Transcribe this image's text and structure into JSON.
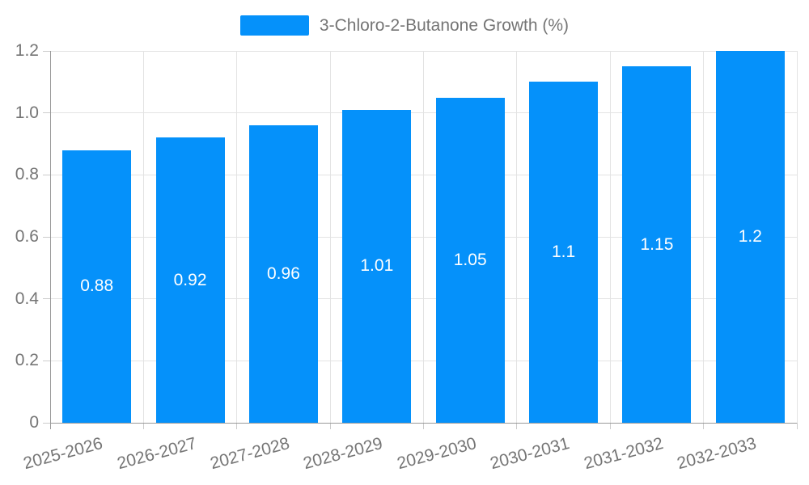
{
  "chart_data": {
    "type": "bar",
    "title": "",
    "legend": {
      "label": "3-Chloro-2-Butanone Growth (%)",
      "position": "top"
    },
    "categories": [
      "2025-2026",
      "2026-2027",
      "2027-2028",
      "2028-2029",
      "2029-2030",
      "2030-2031",
      "2031-2032",
      "2032-2033"
    ],
    "series": [
      {
        "name": "3-Chloro-2-Butanone Growth (%)",
        "values": [
          0.88,
          0.92,
          0.96,
          1.01,
          1.05,
          1.1,
          1.15,
          1.2
        ]
      }
    ],
    "value_labels": [
      "0.88",
      "0.92",
      "0.96",
      "1.01",
      "1.05",
      "1.1",
      "1.15",
      "1.2"
    ],
    "xlabel": "",
    "ylabel": "",
    "ylim": [
      0,
      1.2
    ],
    "yticks": [
      0,
      0.2,
      0.4,
      0.6,
      0.8,
      1.0,
      1.2
    ],
    "ytick_labels": [
      "0",
      "0.2",
      "0.4",
      "0.6",
      "0.8",
      "1.0",
      "1.2"
    ],
    "grid": true,
    "x_label_rotation_deg": -15,
    "colors": {
      "bar": "#0591fa",
      "grid": "#e3e3e3",
      "tick": "#cccccc",
      "axis": "#999999",
      "tick_text": "#757575",
      "value_label": "#ffffff",
      "legend_text": "#757575",
      "background": "#ffffff"
    }
  }
}
